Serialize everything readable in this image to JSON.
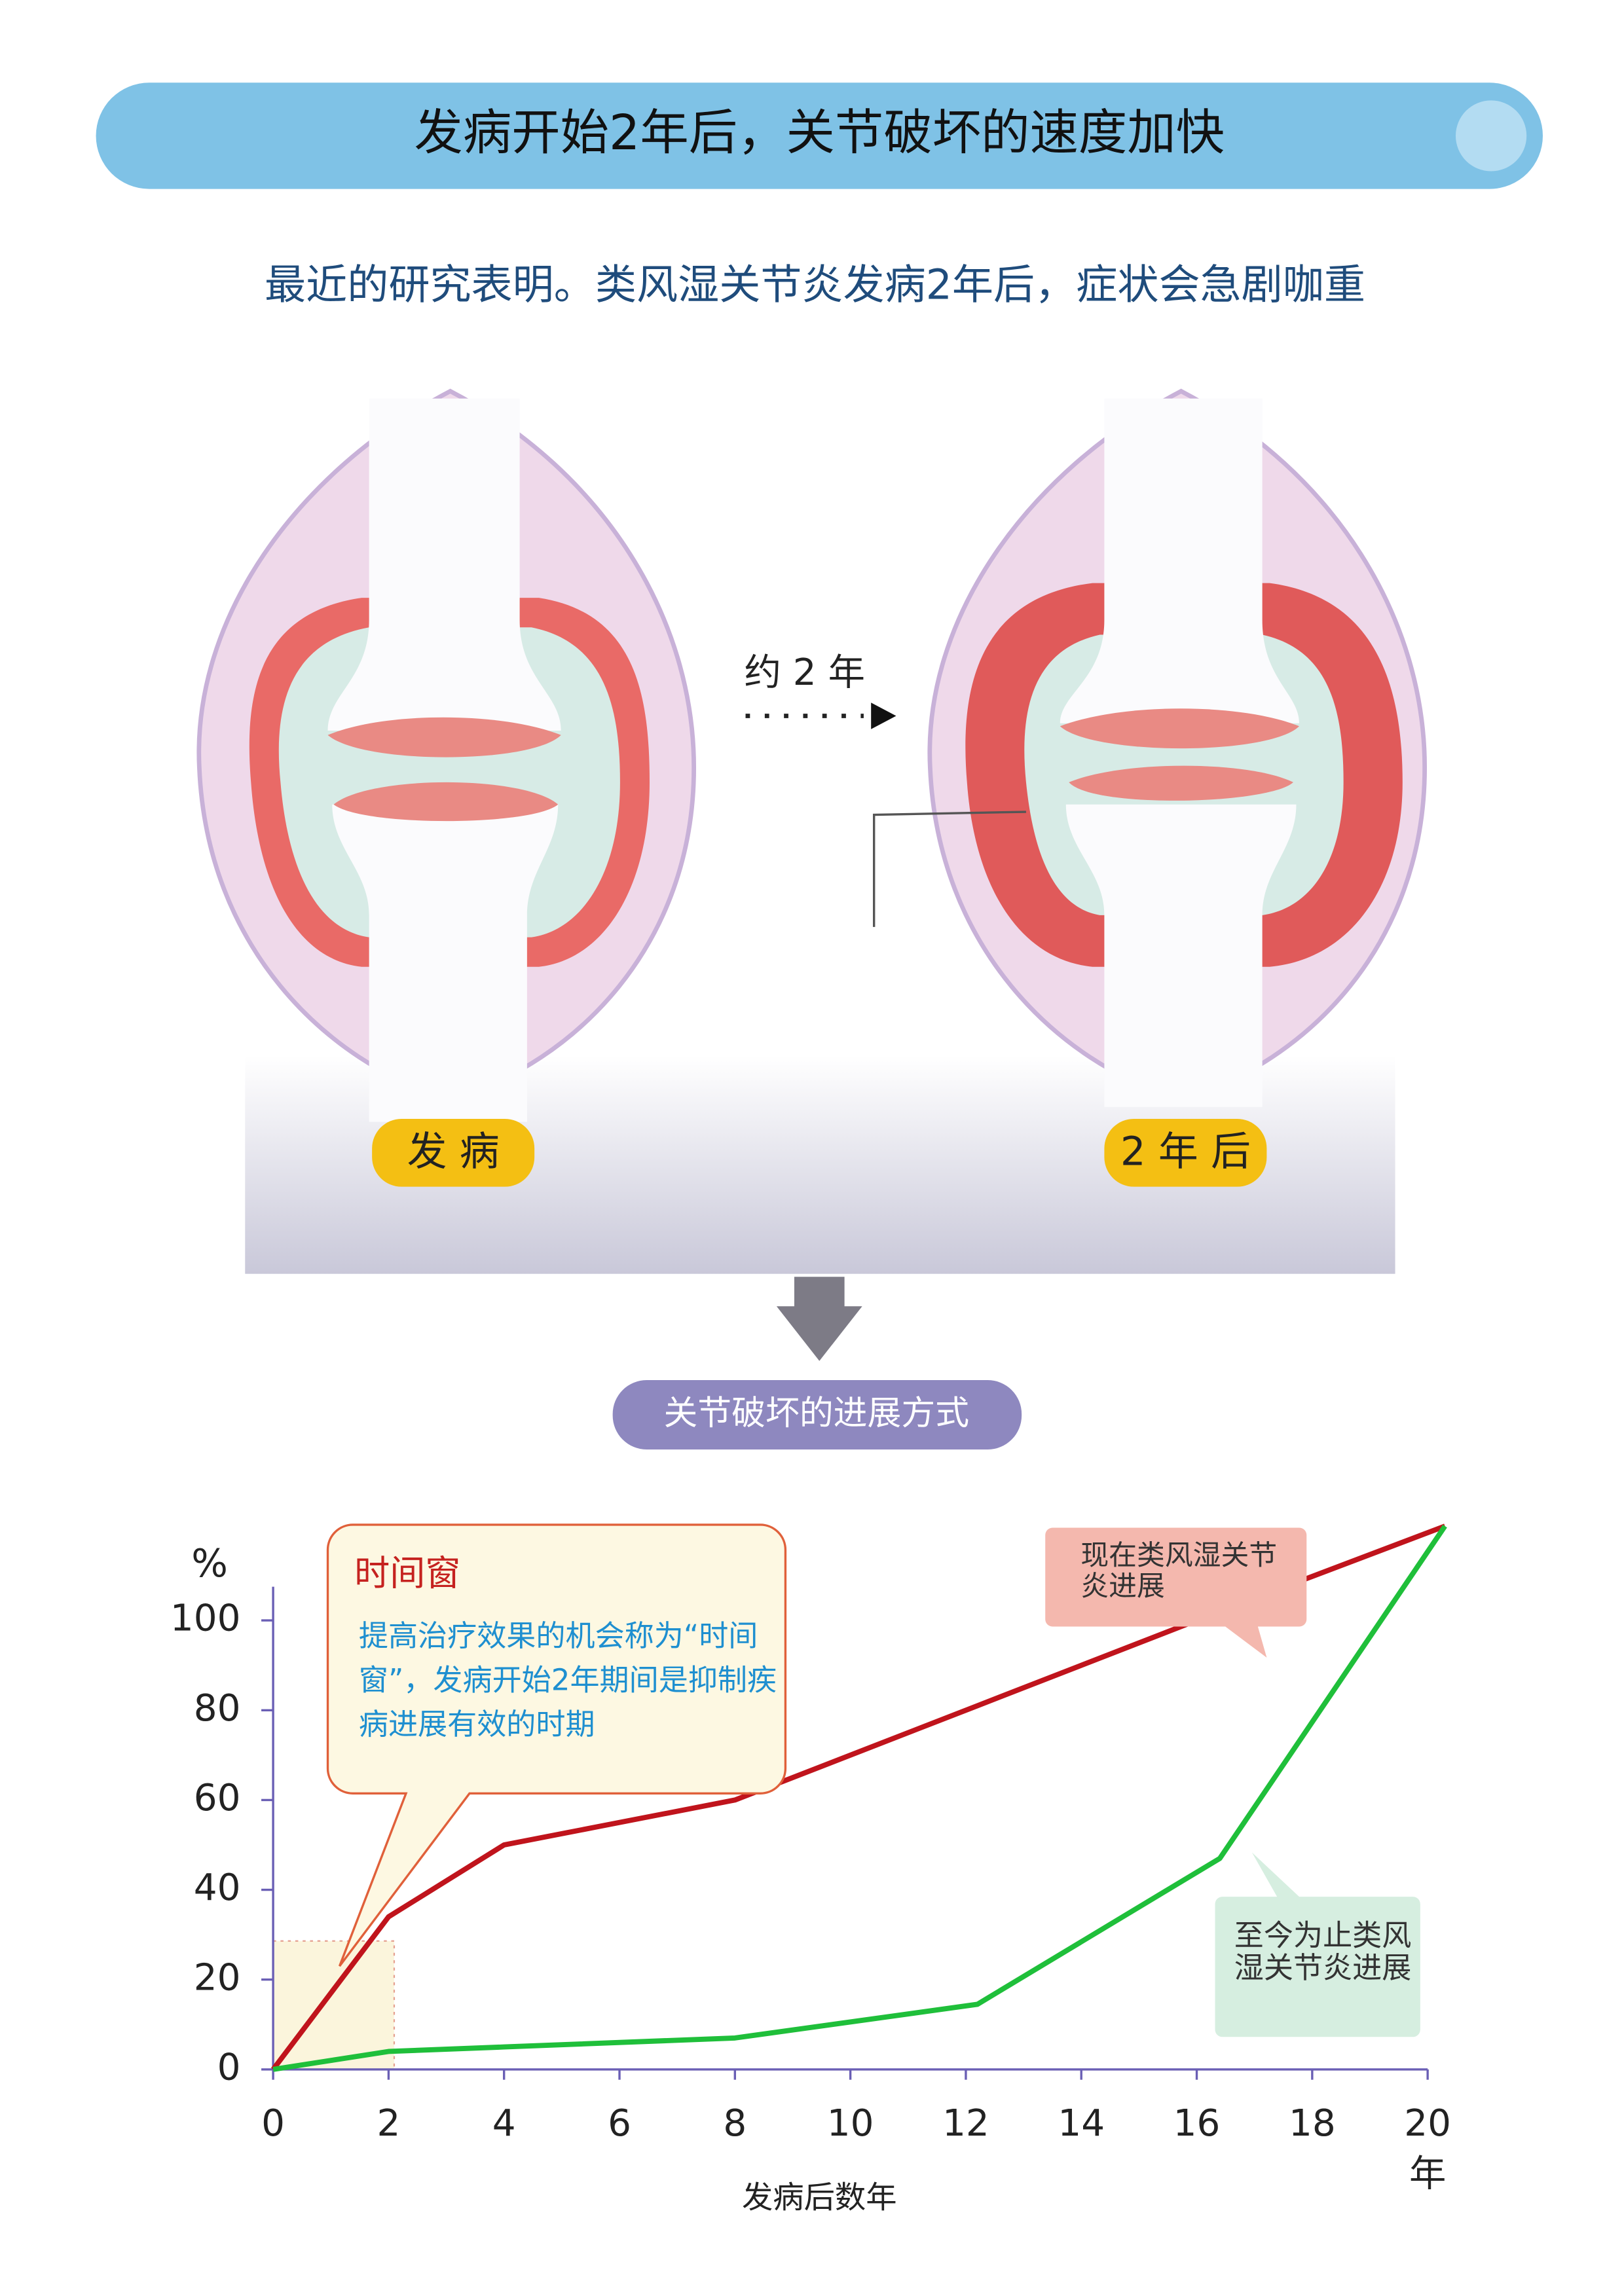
{
  "header": {
    "title": "发病开始2年后，关节破坏的速度加快",
    "subtitle": "最近的研究表明。类风湿关节炎发病2年后，症状会急剧咖重"
  },
  "illustration": {
    "arrow_label": "约 2 年",
    "left_label": "发 病",
    "right_label": "2 年 后",
    "section_label": "关节破坏的进展方式"
  },
  "chart_data": {
    "type": "line",
    "y_label": "%",
    "x_label": "发病后数年",
    "x_unit_label": "年",
    "x": [
      0,
      2,
      4,
      8,
      12.2,
      16.4,
      20.3
    ],
    "series": [
      {
        "name": "现在类风湿关节炎进展",
        "color": "#c0141c",
        "values": [
          0,
          34,
          50,
          60,
          81,
          102,
          121
        ]
      },
      {
        "name": "至今为止类风湿关节炎进展",
        "color": "#1fbf3a",
        "values": [
          0,
          4,
          5,
          7,
          14.5,
          47,
          121
        ]
      }
    ],
    "xlim": [
      0,
      20
    ],
    "xticks": [
      0,
      2,
      4,
      6,
      8,
      10,
      12,
      14,
      16,
      18,
      20
    ],
    "ylim": [
      0,
      107.5
    ],
    "yticks": [
      0,
      20,
      40,
      60,
      80,
      100
    ],
    "annotations": [
      {
        "title": "时间窗",
        "text": "提高治疗效果的机会称为“时间窗”，发病开始2年期间是抑制疾病进展有效的时期"
      }
    ]
  }
}
